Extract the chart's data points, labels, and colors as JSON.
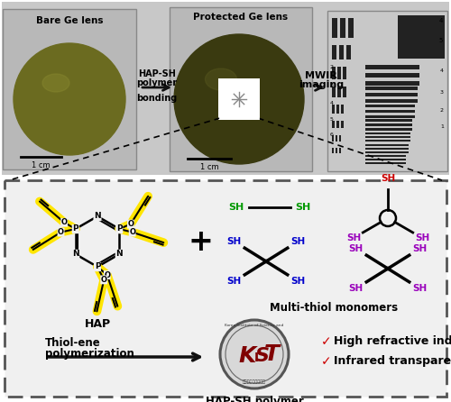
{
  "bg_color": "#ffffff",
  "top_bg": "#c8c8c8",
  "box_bg": "#f0f0f0",
  "dashed_box_color": "#444444",
  "title_bare": "Bare Ge lens",
  "title_protected": "Protected Ge lens",
  "title_mwir": "MWIR imaging",
  "label_hap_sh_arrow": "HAP-SH\npolymer",
  "label_bonding": "bonding",
  "label_hap": "HAP",
  "label_plus": "+",
  "label_multi": "Multi-thiol monomers",
  "label_thiol_ene": "Thiol-ene\npolymerization",
  "label_hap_sh_bottom": "HAP-SH polymer",
  "label_high_ri": "High refractive index",
  "label_infrared": "Infrared transparent",
  "arrow_color": "#111111",
  "yellow": "#FFE500",
  "green_sh": "#009900",
  "blue_sh": "#0000cc",
  "red_sh": "#cc0000",
  "purple_sh": "#9900bb",
  "check_color": "#cc0000",
  "lens1_color": "#6b6b20",
  "lens2_color": "#3a3a10",
  "top_box_color": "#c0c0c0"
}
